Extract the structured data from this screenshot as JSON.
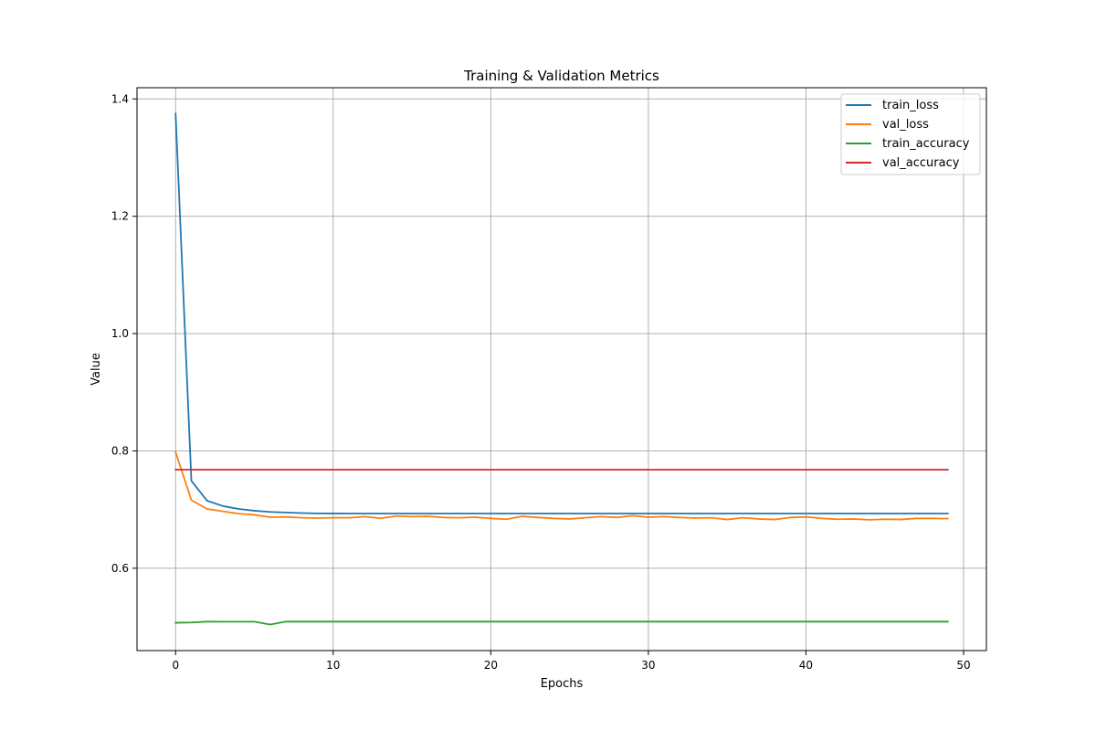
{
  "chart_data": {
    "type": "line",
    "title": "Training & Validation Metrics",
    "xlabel": "Epochs",
    "ylabel": "Value",
    "xlim": [
      -2.45,
      51.45
    ],
    "ylim": [
      0.4596,
      1.4191
    ],
    "xticks": [
      0,
      10,
      20,
      30,
      40,
      50
    ],
    "xtick_labels": [
      "0",
      "10",
      "20",
      "30",
      "40",
      "50"
    ],
    "yticks": [
      0.6,
      0.8,
      1.0,
      1.2,
      1.4
    ],
    "ytick_labels": [
      "0.6",
      "0.8",
      "1.0",
      "1.2",
      "1.4"
    ],
    "grid": true,
    "legend_position": "top-right",
    "x": [
      0,
      1,
      2,
      3,
      4,
      5,
      6,
      7,
      8,
      9,
      10,
      11,
      12,
      13,
      14,
      15,
      16,
      17,
      18,
      19,
      20,
      21,
      22,
      23,
      24,
      25,
      26,
      27,
      28,
      29,
      30,
      31,
      32,
      33,
      34,
      35,
      36,
      37,
      38,
      39,
      40,
      41,
      42,
      43,
      44,
      45,
      46,
      47,
      48,
      49
    ],
    "series": [
      {
        "name": "train_loss",
        "color": "#1f77b4",
        "values": [
          1.375,
          0.749,
          0.715,
          0.706,
          0.701,
          0.698,
          0.696,
          0.695,
          0.694,
          0.6935,
          0.6933,
          0.6932,
          0.6932,
          0.6932,
          0.6932,
          0.6932,
          0.6932,
          0.6932,
          0.6932,
          0.6932,
          0.6932,
          0.6932,
          0.6932,
          0.6932,
          0.6932,
          0.6932,
          0.6932,
          0.6932,
          0.6932,
          0.6932,
          0.6932,
          0.6932,
          0.6932,
          0.6932,
          0.6932,
          0.6932,
          0.6932,
          0.6932,
          0.6932,
          0.6932,
          0.6932,
          0.6932,
          0.6932,
          0.6932,
          0.6932,
          0.6932,
          0.6932,
          0.6932,
          0.6932,
          0.6932
        ]
      },
      {
        "name": "val_loss",
        "color": "#ff7f0e",
        "values": [
          0.798,
          0.716,
          0.701,
          0.697,
          0.693,
          0.691,
          0.687,
          0.6875,
          0.686,
          0.6855,
          0.686,
          0.686,
          0.688,
          0.685,
          0.689,
          0.688,
          0.6885,
          0.6865,
          0.686,
          0.687,
          0.685,
          0.6835,
          0.6885,
          0.6865,
          0.685,
          0.684,
          0.686,
          0.688,
          0.6865,
          0.6895,
          0.687,
          0.688,
          0.6865,
          0.6855,
          0.686,
          0.683,
          0.686,
          0.684,
          0.683,
          0.6865,
          0.6875,
          0.685,
          0.6835,
          0.684,
          0.6825,
          0.6835,
          0.683,
          0.685,
          0.685,
          0.6845
        ]
      },
      {
        "name": "train_accuracy",
        "color": "#2ca02c",
        "values": [
          0.507,
          0.5075,
          0.509,
          0.5088,
          0.5088,
          0.5088,
          0.504,
          0.509,
          0.509,
          0.509,
          0.509,
          0.509,
          0.509,
          0.509,
          0.509,
          0.509,
          0.509,
          0.509,
          0.509,
          0.509,
          0.509,
          0.509,
          0.509,
          0.509,
          0.509,
          0.509,
          0.509,
          0.509,
          0.509,
          0.509,
          0.509,
          0.509,
          0.509,
          0.509,
          0.509,
          0.509,
          0.509,
          0.509,
          0.509,
          0.509,
          0.509,
          0.509,
          0.509,
          0.509,
          0.509,
          0.509,
          0.509,
          0.509,
          0.509,
          0.509
        ]
      },
      {
        "name": "val_accuracy",
        "color": "#d62728",
        "values": [
          0.768,
          0.768,
          0.768,
          0.768,
          0.768,
          0.768,
          0.768,
          0.768,
          0.768,
          0.768,
          0.768,
          0.768,
          0.768,
          0.768,
          0.768,
          0.768,
          0.768,
          0.768,
          0.768,
          0.768,
          0.768,
          0.768,
          0.768,
          0.768,
          0.768,
          0.768,
          0.768,
          0.768,
          0.768,
          0.768,
          0.768,
          0.768,
          0.768,
          0.768,
          0.768,
          0.768,
          0.768,
          0.768,
          0.768,
          0.768,
          0.768,
          0.768,
          0.768,
          0.768,
          0.768,
          0.768,
          0.768,
          0.768,
          0.768,
          0.768
        ]
      }
    ]
  }
}
